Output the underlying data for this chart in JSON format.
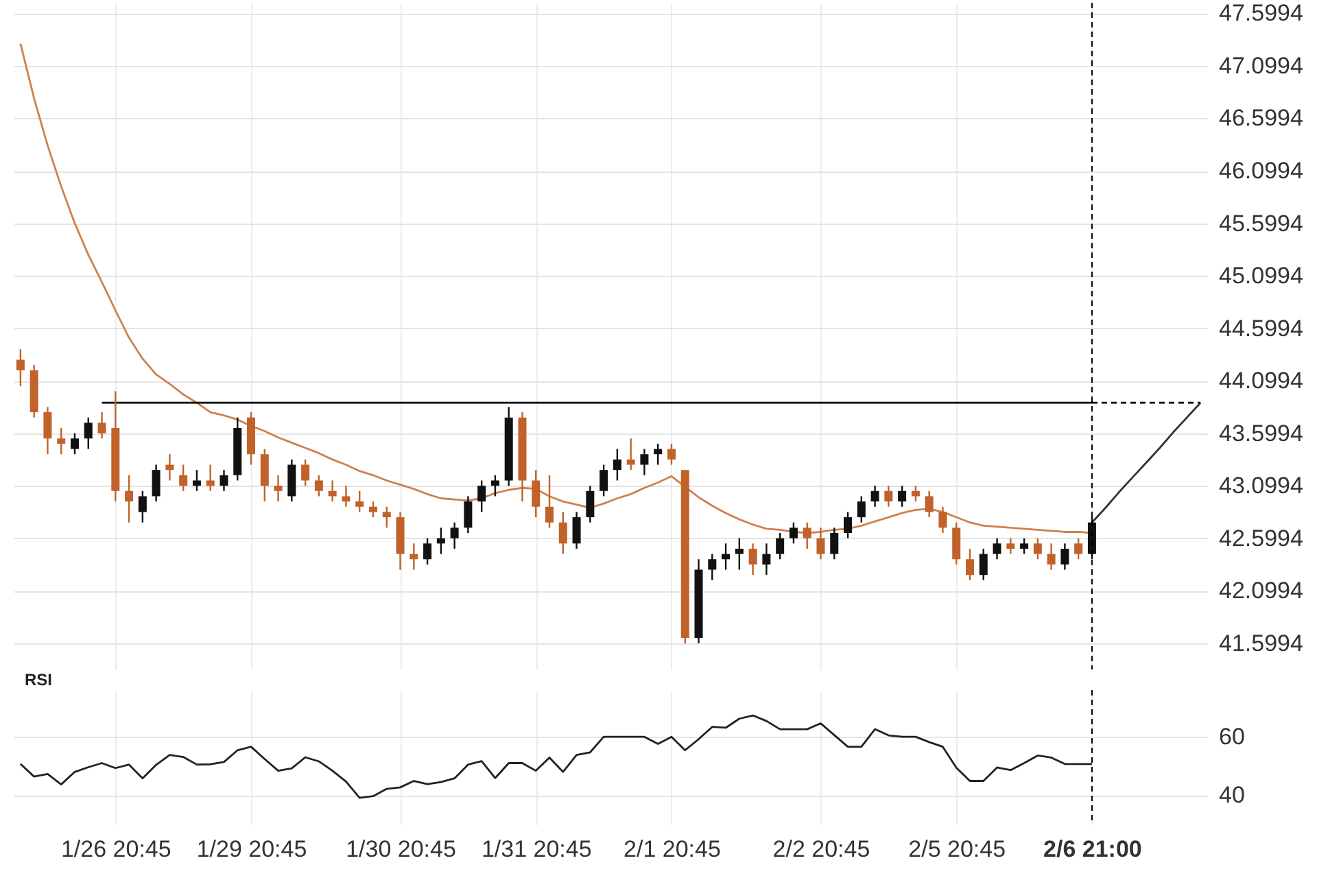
{
  "chart_data": [
    {
      "type": "candlestick",
      "categories": [
        null,
        null,
        null,
        null,
        null,
        null,
        null,
        "1/26 20:45",
        null,
        null,
        null,
        null,
        null,
        null,
        null,
        null,
        null,
        "1/29 20:45",
        null,
        null,
        null,
        null,
        null,
        null,
        null,
        null,
        null,
        null,
        "1/30 20:45",
        null,
        null,
        null,
        null,
        null,
        null,
        null,
        null,
        null,
        "1/31 20:45",
        null,
        null,
        null,
        null,
        null,
        null,
        null,
        null,
        null,
        "2/1 20:45",
        null,
        null,
        null,
        null,
        null,
        null,
        null,
        null,
        null,
        null,
        "2/2 20:45",
        null,
        null,
        null,
        null,
        null,
        null,
        null,
        null,
        null,
        "2/5 20:45",
        null,
        null,
        null,
        null,
        null,
        null,
        null,
        null,
        null,
        "2/6 21:00",
        null,
        null,
        null,
        null,
        null,
        null,
        null,
        null
      ],
      "ohlc": [
        [
          44.3,
          44.4,
          44.05,
          44.2
        ],
        [
          44.2,
          44.25,
          43.75,
          43.8
        ],
        [
          43.8,
          43.85,
          43.4,
          43.55
        ],
        [
          43.55,
          43.65,
          43.4,
          43.5
        ],
        [
          43.45,
          43.6,
          43.4,
          43.55
        ],
        [
          43.55,
          43.75,
          43.45,
          43.7
        ],
        [
          43.7,
          43.8,
          43.55,
          43.6
        ],
        [
          43.65,
          44.0,
          42.95,
          43.05
        ],
        [
          43.05,
          43.2,
          42.75,
          42.95
        ],
        [
          42.85,
          43.05,
          42.75,
          43.0
        ],
        [
          43.0,
          43.3,
          42.95,
          43.25
        ],
        [
          43.3,
          43.4,
          43.15,
          43.25
        ],
        [
          43.2,
          43.3,
          43.05,
          43.1
        ],
        [
          43.1,
          43.25,
          43.05,
          43.15
        ],
        [
          43.15,
          43.3,
          43.05,
          43.1
        ],
        [
          43.1,
          43.25,
          43.05,
          43.2
        ],
        [
          43.2,
          43.75,
          43.15,
          43.65
        ],
        [
          43.75,
          43.8,
          43.3,
          43.4
        ],
        [
          43.4,
          43.45,
          42.95,
          43.1
        ],
        [
          43.1,
          43.2,
          42.95,
          43.05
        ],
        [
          43.0,
          43.35,
          42.95,
          43.3
        ],
        [
          43.3,
          43.35,
          43.1,
          43.15
        ],
        [
          43.15,
          43.2,
          43.0,
          43.05
        ],
        [
          43.05,
          43.15,
          42.95,
          43.0
        ],
        [
          43.0,
          43.1,
          42.9,
          42.95
        ],
        [
          42.95,
          43.05,
          42.85,
          42.9
        ],
        [
          42.9,
          42.95,
          42.8,
          42.85
        ],
        [
          42.85,
          42.9,
          42.7,
          42.8
        ],
        [
          42.8,
          42.85,
          42.3,
          42.45
        ],
        [
          42.45,
          42.55,
          42.3,
          42.4
        ],
        [
          42.4,
          42.6,
          42.35,
          42.55
        ],
        [
          42.55,
          42.7,
          42.45,
          42.6
        ],
        [
          42.6,
          42.75,
          42.5,
          42.7
        ],
        [
          42.7,
          43.0,
          42.65,
          42.95
        ],
        [
          42.95,
          43.15,
          42.85,
          43.1
        ],
        [
          43.1,
          43.2,
          43.0,
          43.15
        ],
        [
          43.15,
          43.85,
          43.1,
          43.75
        ],
        [
          43.75,
          43.8,
          42.95,
          43.15
        ],
        [
          43.15,
          43.25,
          42.8,
          42.9
        ],
        [
          42.9,
          43.2,
          42.7,
          42.75
        ],
        [
          42.75,
          42.85,
          42.45,
          42.55
        ],
        [
          42.55,
          42.85,
          42.5,
          42.8
        ],
        [
          42.8,
          43.1,
          42.75,
          43.05
        ],
        [
          43.05,
          43.3,
          43.0,
          43.25
        ],
        [
          43.25,
          43.45,
          43.15,
          43.35
        ],
        [
          43.35,
          43.55,
          43.25,
          43.3
        ],
        [
          43.3,
          43.45,
          43.2,
          43.4
        ],
        [
          43.4,
          43.5,
          43.3,
          43.45
        ],
        [
          43.45,
          43.5,
          43.3,
          43.35
        ],
        [
          43.25,
          43.25,
          41.6,
          41.65
        ],
        [
          41.65,
          42.4,
          41.6,
          42.3
        ],
        [
          42.3,
          42.45,
          42.2,
          42.4
        ],
        [
          42.4,
          42.55,
          42.3,
          42.45
        ],
        [
          42.45,
          42.6,
          42.3,
          42.5
        ],
        [
          42.5,
          42.55,
          42.25,
          42.35
        ],
        [
          42.35,
          42.55,
          42.25,
          42.45
        ],
        [
          42.45,
          42.65,
          42.4,
          42.6
        ],
        [
          42.6,
          42.75,
          42.55,
          42.7
        ],
        [
          42.7,
          42.75,
          42.5,
          42.6
        ],
        [
          42.6,
          42.7,
          42.4,
          42.45
        ],
        [
          42.45,
          42.7,
          42.4,
          42.65
        ],
        [
          42.65,
          42.85,
          42.6,
          42.8
        ],
        [
          42.8,
          43.0,
          42.75,
          42.95
        ],
        [
          42.95,
          43.1,
          42.9,
          43.05
        ],
        [
          43.05,
          43.1,
          42.9,
          42.95
        ],
        [
          42.95,
          43.1,
          42.9,
          43.05
        ],
        [
          43.05,
          43.1,
          42.95,
          43.0
        ],
        [
          43.0,
          43.05,
          42.8,
          42.85
        ],
        [
          42.85,
          42.9,
          42.65,
          42.7
        ],
        [
          42.7,
          42.75,
          42.35,
          42.4
        ],
        [
          42.4,
          42.5,
          42.2,
          42.25
        ],
        [
          42.25,
          42.5,
          42.2,
          42.45
        ],
        [
          42.45,
          42.6,
          42.4,
          42.55
        ],
        [
          42.55,
          42.6,
          42.45,
          42.5
        ],
        [
          42.5,
          42.6,
          42.45,
          42.55
        ],
        [
          42.55,
          42.6,
          42.4,
          42.45
        ],
        [
          42.45,
          42.55,
          42.3,
          42.35
        ],
        [
          42.35,
          42.55,
          42.3,
          42.5
        ],
        [
          42.55,
          42.6,
          42.4,
          42.45
        ],
        [
          42.45,
          42.8,
          42.4,
          42.75
        ],
        null,
        null,
        null,
        null,
        null,
        null,
        null,
        null
      ],
      "colors": [
        "#c0622a",
        "#c0622a",
        "#c0622a",
        "#c0622a",
        "#111111",
        "#111111",
        "#c0622a",
        "#c0622a",
        "#c0622a",
        "#111111",
        "#111111",
        "#c0622a",
        "#c0622a",
        "#111111",
        "#c0622a",
        "#111111",
        "#111111",
        "#c0622a",
        "#c0622a",
        "#c0622a",
        "#111111",
        "#c0622a",
        "#c0622a",
        "#c0622a",
        "#c0622a",
        "#c0622a",
        "#c0622a",
        "#c0622a",
        "#c0622a",
        "#c0622a",
        "#111111",
        "#111111",
        "#111111",
        "#111111",
        "#111111",
        "#111111",
        "#111111",
        "#c0622a",
        "#c0622a",
        "#c0622a",
        "#c0622a",
        "#111111",
        "#111111",
        "#111111",
        "#111111",
        "#c0622a",
        "#111111",
        "#111111",
        "#c0622a",
        "#c0622a",
        "#111111",
        "#111111",
        "#111111",
        "#111111",
        "#c0622a",
        "#111111",
        "#111111",
        "#111111",
        "#c0622a",
        "#c0622a",
        "#111111",
        "#111111",
        "#111111",
        "#111111",
        "#c0622a",
        "#111111",
        "#c0622a",
        "#c0622a",
        "#c0622a",
        "#c0622a",
        "#c0622a",
        "#111111",
        "#111111",
        "#c0622a",
        "#111111",
        "#c0622a",
        "#c0622a",
        "#111111",
        "#c0622a",
        "#111111",
        null,
        null,
        null,
        null,
        null,
        null,
        null,
        null
      ],
      "series": [
        {
          "type": "line",
          "color": "#d0804c",
          "values": [
            47.31,
            46.79,
            46.34,
            45.95,
            45.6,
            45.3,
            45.04,
            44.77,
            44.51,
            44.31,
            44.16,
            44.07,
            43.97,
            43.89,
            43.8,
            43.77,
            43.73,
            43.67,
            43.62,
            43.56,
            43.51,
            43.46,
            43.41,
            43.35,
            43.3,
            43.24,
            43.2,
            43.15,
            43.11,
            43.07,
            43.02,
            42.98,
            42.97,
            42.96,
            42.98,
            43.03,
            43.06,
            43.08,
            43.07,
            43.0,
            42.95,
            42.92,
            42.89,
            42.93,
            42.98,
            43.02,
            43.08,
            43.13,
            43.19,
            43.09,
            42.99,
            42.91,
            42.84,
            42.78,
            42.73,
            42.69,
            42.68,
            42.66,
            42.65,
            42.66,
            42.68,
            42.69,
            42.72,
            42.76,
            42.8,
            42.84,
            42.87,
            42.88,
            42.85,
            42.8,
            42.75,
            42.72,
            42.71,
            42.7,
            42.69,
            42.68,
            42.67,
            42.66,
            42.66,
            42.65,
            null,
            null,
            null,
            null,
            null,
            null,
            null,
            null
          ]
        },
        {
          "type": "line",
          "color": "#000000",
          "values": [
            null,
            null,
            null,
            null,
            null,
            null,
            43.89,
            43.89,
            43.89,
            43.89,
            43.89,
            43.89,
            43.89,
            43.89,
            43.89,
            43.89,
            43.89,
            43.89,
            43.89,
            43.89,
            43.89,
            43.89,
            43.89,
            43.89,
            43.89,
            43.89,
            43.89,
            43.89,
            43.89,
            43.89,
            43.89,
            43.89,
            43.89,
            43.89,
            43.89,
            43.89,
            43.89,
            43.89,
            43.89,
            43.89,
            43.89,
            43.89,
            43.89,
            43.89,
            43.89,
            43.89,
            43.89,
            43.89,
            43.89,
            43.89,
            43.89,
            43.89,
            43.89,
            43.89,
            43.89,
            43.89,
            43.89,
            43.89,
            43.89,
            43.89,
            43.89,
            43.89,
            43.89,
            43.89,
            43.89,
            43.89,
            43.89,
            43.89,
            43.89,
            43.89,
            43.89,
            43.89,
            43.89,
            43.89,
            43.89,
            43.89,
            43.89,
            43.89,
            43.89,
            43.89,
            null,
            null,
            null,
            null,
            null,
            null,
            null,
            null
          ]
        },
        {
          "type": "line",
          "color": "#000000",
          "line_style": "dashed",
          "values": [
            null,
            null,
            null,
            null,
            null,
            null,
            null,
            null,
            null,
            null,
            null,
            null,
            null,
            null,
            null,
            null,
            null,
            null,
            null,
            null,
            null,
            null,
            null,
            null,
            null,
            null,
            null,
            null,
            null,
            null,
            null,
            null,
            null,
            null,
            null,
            null,
            null,
            null,
            null,
            null,
            null,
            null,
            null,
            null,
            null,
            null,
            null,
            null,
            null,
            null,
            null,
            null,
            null,
            null,
            null,
            null,
            null,
            null,
            null,
            null,
            null,
            null,
            null,
            null,
            null,
            null,
            null,
            null,
            null,
            null,
            null,
            null,
            null,
            null,
            null,
            null,
            null,
            null,
            null,
            43.89,
            43.89,
            43.89,
            43.89,
            43.89,
            43.89,
            43.89,
            43.89,
            43.89
          ]
        },
        {
          "type": "line",
          "color": "#333333",
          "values": [
            null,
            null,
            null,
            null,
            null,
            null,
            null,
            null,
            null,
            null,
            null,
            null,
            null,
            null,
            null,
            null,
            null,
            null,
            null,
            null,
            null,
            null,
            null,
            null,
            null,
            null,
            null,
            null,
            null,
            null,
            null,
            null,
            null,
            null,
            null,
            null,
            null,
            null,
            null,
            null,
            null,
            null,
            null,
            null,
            null,
            null,
            null,
            null,
            null,
            null,
            null,
            null,
            null,
            null,
            null,
            null,
            null,
            null,
            null,
            null,
            null,
            null,
            null,
            null,
            null,
            null,
            null,
            null,
            null,
            null,
            null,
            null,
            null,
            null,
            null,
            null,
            null,
            null,
            null,
            42.75,
            42.89,
            43.04,
            43.18,
            43.32,
            43.46,
            43.61,
            43.75,
            43.89
          ]
        }
      ],
      "ylim": [
        41.35,
        47.7
      ],
      "yticks": [
        41.5994,
        42.0994,
        42.5994,
        43.0994,
        43.5994,
        44.0994,
        44.5994,
        45.0994,
        45.5994,
        46.0994,
        46.5994,
        47.0994,
        47.5994
      ],
      "grid": true,
      "tick_labels": "y",
      "marker": "none",
      "ref_lines": [
        {
          "axis": "x",
          "value": "2/6 21:00",
          "line_style": "dashed",
          "color": "#000000"
        }
      ]
    },
    {
      "type": "line",
      "title": "RSI",
      "categories": [
        null,
        null,
        null,
        null,
        null,
        null,
        null,
        "1/26 20:45",
        null,
        null,
        null,
        null,
        null,
        null,
        null,
        null,
        null,
        "1/29 20:45",
        null,
        null,
        null,
        null,
        null,
        null,
        null,
        null,
        null,
        null,
        "1/30 20:45",
        null,
        null,
        null,
        null,
        null,
        null,
        null,
        null,
        null,
        "1/31 20:45",
        null,
        null,
        null,
        null,
        null,
        null,
        null,
        null,
        null,
        "2/1 20:45",
        null,
        null,
        null,
        null,
        null,
        null,
        null,
        null,
        null,
        null,
        "2/2 20:45",
        null,
        null,
        null,
        null,
        null,
        null,
        null,
        null,
        null,
        "2/5 20:45",
        null,
        null,
        null,
        null,
        null,
        null,
        null,
        null,
        null,
        "2/6 21:00",
        null,
        null,
        null,
        null,
        null,
        null,
        null,
        null
      ],
      "series": [
        {
          "color": "#222222",
          "values": [
            50.7,
            46.4,
            47.3,
            43.7,
            48,
            49.6,
            51,
            49.3,
            50.5,
            45.8,
            50.4,
            53.8,
            53.1,
            50.5,
            50.6,
            51.4,
            55.4,
            56.6,
            52.4,
            48.4,
            49.2,
            53.0,
            51.6,
            48.4,
            44.7,
            39.1,
            39.7,
            42.2,
            42.7,
            44.9,
            43.8,
            44.5,
            45.8,
            50.5,
            51.7,
            45.9,
            51,
            51,
            48.4,
            52.9,
            48,
            53.8,
            54.7,
            60,
            60,
            60,
            60,
            57.6,
            60,
            55.4,
            59.2,
            63.4,
            63.1,
            66.2,
            67.3,
            65.4,
            62.6,
            62.6,
            62.6,
            64.6,
            60.6,
            56.6,
            56.6,
            62.6,
            60.5,
            60,
            60,
            58.2,
            56.6,
            49.4,
            44.9,
            44.9,
            49.5,
            48.6,
            51,
            53.6,
            52.9,
            50.7,
            50.7,
            50.7,
            null,
            null,
            null,
            null,
            null,
            null,
            null,
            null
          ]
        }
      ],
      "ylim": [
        30,
        76
      ],
      "yticks": [
        40,
        60
      ],
      "grid": true,
      "marker": "none",
      "ref_lines": [
        {
          "axis": "x",
          "value": "2/6 21:00",
          "line_style": "dashed",
          "color": "#000000"
        }
      ]
    }
  ]
}
